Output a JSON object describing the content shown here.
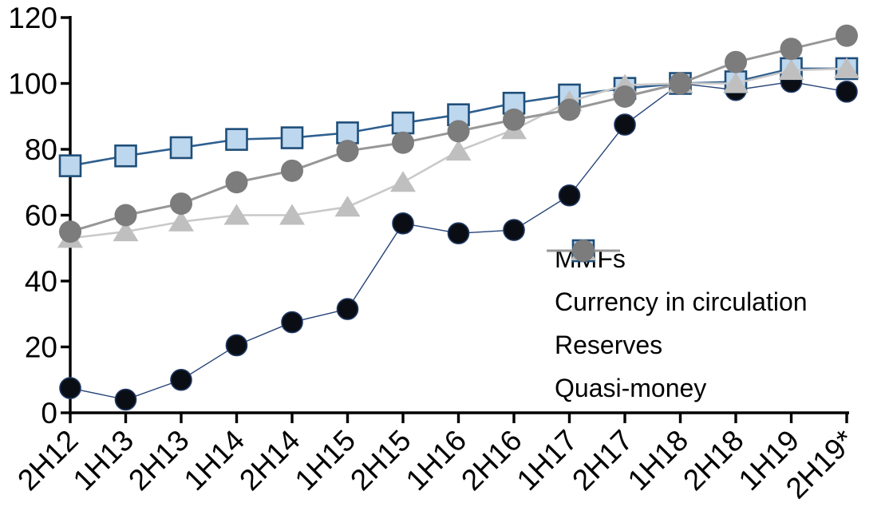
{
  "chart_data": {
    "type": "line",
    "title": "",
    "xlabel": "",
    "ylabel": "",
    "categories": [
      "2H12",
      "1H13",
      "2H13",
      "1H14",
      "2H14",
      "1H15",
      "2H15",
      "1H16",
      "2H16",
      "1H17",
      "2H17",
      "1H18",
      "2H18",
      "1H19",
      "2H19*"
    ],
    "series": [
      {
        "name": "MMFs",
        "marker": "circle",
        "fill": "#0a0e14",
        "edge": "#1f3864",
        "line_color": "#264478",
        "line_width": 1.4,
        "values": [
          7.5,
          4,
          10,
          20.5,
          27.5,
          31.5,
          57.5,
          54.5,
          55.5,
          66,
          87.5,
          100,
          98,
          100.5,
          97.5
        ]
      },
      {
        "name": "Currency in circulation",
        "marker": "square",
        "fill": "#bdd7ee",
        "edge": "#1f4e79",
        "line_color": "#2e5f8f",
        "line_width": 2.6,
        "values": [
          75,
          78,
          80.5,
          83,
          83.5,
          85,
          88,
          90.5,
          94,
          96.5,
          98.5,
          100,
          100.5,
          104.5,
          104.5
        ]
      },
      {
        "name": "Reserves",
        "marker": "triangle",
        "fill": "#bfbfbf",
        "edge": "#bfbfbf",
        "line_color": "#c9c9c9",
        "line_width": 2.6,
        "values": [
          53,
          55,
          58,
          60,
          60,
          62.5,
          70,
          79.5,
          86,
          94.5,
          99.5,
          100,
          100,
          104,
          104.5
        ]
      },
      {
        "name": "Quasi-money",
        "marker": "circle",
        "fill": "#7c7c7c",
        "edge": "#7c7c7c",
        "line_color": "#979797",
        "line_width": 3,
        "values": [
          55,
          60,
          63.5,
          70,
          73.5,
          79.5,
          82,
          85.5,
          89,
          92,
          96,
          100,
          106.5,
          110.5,
          114.5
        ]
      }
    ],
    "ylim": [
      0,
      120
    ],
    "yticks": [
      0,
      20,
      40,
      60,
      80,
      100,
      120
    ],
    "grid": false,
    "legend_position": "inside-right",
    "axis_color": "#000000",
    "background_color": "#ffffff"
  }
}
